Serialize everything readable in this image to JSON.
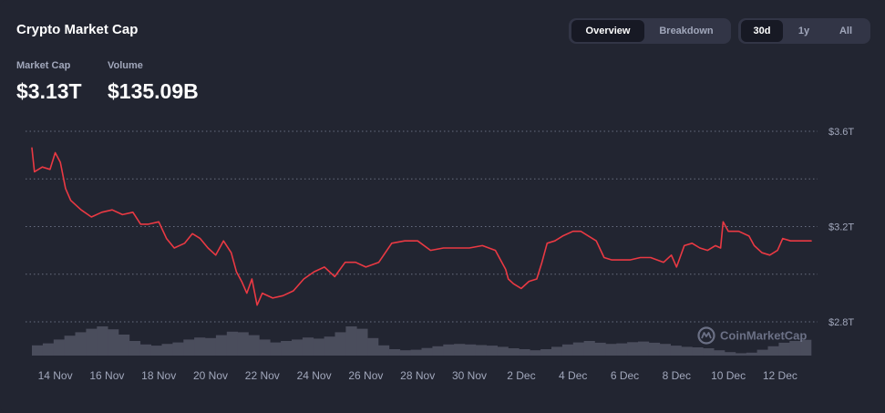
{
  "header": {
    "title": "Crypto Market Cap",
    "view_tabs": [
      {
        "label": "Overview",
        "active": true
      },
      {
        "label": "Breakdown",
        "active": false
      }
    ],
    "range_tabs": [
      {
        "label": "30d",
        "active": true
      },
      {
        "label": "1y",
        "active": false
      },
      {
        "label": "All",
        "active": false
      }
    ]
  },
  "stats": {
    "market_cap": {
      "label": "Market Cap",
      "value": "$3.13T"
    },
    "volume": {
      "label": "Volume",
      "value": "$135.09B"
    }
  },
  "watermark": "CoinMarketCap",
  "colors": {
    "background": "#222531",
    "line": "#ea3943",
    "grid": "#858ca2",
    "volume": "#4a4d5c",
    "muted_text": "#a1a7bb"
  },
  "chart_data": {
    "type": "line",
    "ylim": [
      2.8,
      3.6
    ],
    "y_ticks": [
      {
        "value": 3.6,
        "label": "$3.6T"
      },
      {
        "value": 3.2,
        "label": "$3.2T"
      },
      {
        "value": 2.8,
        "label": "$2.8T"
      }
    ],
    "x_ticks": [
      {
        "x": 14,
        "label": "14 Nov"
      },
      {
        "x": 16,
        "label": "16 Nov"
      },
      {
        "x": 18,
        "label": "18 Nov"
      },
      {
        "x": 20,
        "label": "20 Nov"
      },
      {
        "x": 22,
        "label": "22 Nov"
      },
      {
        "x": 24,
        "label": "24 Nov"
      },
      {
        "x": 26,
        "label": "26 Nov"
      },
      {
        "x": 28,
        "label": "28 Nov"
      },
      {
        "x": 30,
        "label": "30 Nov"
      },
      {
        "x": 32,
        "label": "2 Dec"
      },
      {
        "x": 34,
        "label": "4 Dec"
      },
      {
        "x": 36,
        "label": "6 Dec"
      },
      {
        "x": 38,
        "label": "8 Dec"
      },
      {
        "x": 40,
        "label": "10 Dec"
      },
      {
        "x": 42,
        "label": "12 Dec"
      }
    ],
    "xlim": [
      13.1,
      43.2
    ],
    "series": [
      {
        "values_x": [
          13.1,
          13.2,
          13.5,
          13.8,
          14.0,
          14.2,
          14.4,
          14.6,
          15.0,
          15.4,
          15.8,
          16.2,
          16.6,
          17.0,
          17.3,
          17.6,
          18.0,
          18.3,
          18.6,
          19.0,
          19.3,
          19.6,
          19.9,
          20.2,
          20.5,
          20.8,
          21.0,
          21.2,
          21.4,
          21.6,
          21.8,
          22.0,
          22.4,
          22.8,
          23.2,
          23.6,
          24.0,
          24.4,
          24.8,
          25.2,
          25.6,
          26.0,
          26.5,
          27.0,
          27.5,
          28.0,
          28.5,
          29.0,
          29.5,
          30.0,
          30.5,
          31.0,
          31.4,
          31.5,
          31.7,
          32.0,
          32.3,
          32.6,
          32.8,
          33.0,
          33.3,
          33.6,
          34.0,
          34.3,
          34.6,
          34.9,
          35.2,
          35.5,
          35.8,
          36.2,
          36.6,
          37.0,
          37.5,
          37.8,
          38.0,
          38.3,
          38.6,
          38.9,
          39.2,
          39.5,
          39.7,
          39.8,
          40.0,
          40.4,
          40.8,
          41.0,
          41.3,
          41.6,
          41.9,
          42.1,
          42.4,
          42.7,
          43.0,
          43.2
        ],
        "values_y": [
          3.53,
          3.43,
          3.45,
          3.44,
          3.51,
          3.47,
          3.36,
          3.31,
          3.27,
          3.24,
          3.26,
          3.27,
          3.25,
          3.26,
          3.21,
          3.21,
          3.22,
          3.15,
          3.11,
          3.13,
          3.17,
          3.15,
          3.11,
          3.08,
          3.14,
          3.09,
          3.01,
          2.97,
          2.92,
          2.98,
          2.87,
          2.92,
          2.9,
          2.91,
          2.93,
          2.98,
          3.01,
          3.03,
          2.99,
          3.05,
          3.05,
          3.03,
          3.05,
          3.13,
          3.14,
          3.14,
          3.1,
          3.11,
          3.11,
          3.11,
          3.12,
          3.1,
          3.02,
          2.98,
          2.96,
          2.94,
          2.97,
          2.98,
          3.05,
          3.13,
          3.14,
          3.16,
          3.18,
          3.18,
          3.16,
          3.14,
          3.07,
          3.06,
          3.06,
          3.06,
          3.07,
          3.07,
          3.05,
          3.08,
          3.03,
          3.12,
          3.13,
          3.11,
          3.1,
          3.12,
          3.11,
          3.22,
          3.18,
          3.18,
          3.16,
          3.12,
          3.09,
          3.08,
          3.1,
          3.15,
          3.14,
          3.14,
          3.14,
          3.14
        ]
      }
    ],
    "volume_series": [
      0.35,
      0.42,
      0.55,
      0.68,
      0.8,
      0.92,
      1.0,
      0.9,
      0.72,
      0.5,
      0.38,
      0.34,
      0.4,
      0.45,
      0.55,
      0.62,
      0.6,
      0.7,
      0.82,
      0.8,
      0.7,
      0.55,
      0.45,
      0.5,
      0.55,
      0.62,
      0.58,
      0.65,
      0.8,
      1.0,
      0.92,
      0.6,
      0.35,
      0.22,
      0.18,
      0.2,
      0.26,
      0.32,
      0.38,
      0.4,
      0.38,
      0.36,
      0.34,
      0.3,
      0.25,
      0.22,
      0.18,
      0.22,
      0.3,
      0.38,
      0.45,
      0.5,
      0.44,
      0.4,
      0.42,
      0.46,
      0.48,
      0.44,
      0.4,
      0.34,
      0.3,
      0.28,
      0.25,
      0.18,
      0.12,
      0.08,
      0.1,
      0.2,
      0.32,
      0.44,
      0.5,
      0.54
    ]
  }
}
